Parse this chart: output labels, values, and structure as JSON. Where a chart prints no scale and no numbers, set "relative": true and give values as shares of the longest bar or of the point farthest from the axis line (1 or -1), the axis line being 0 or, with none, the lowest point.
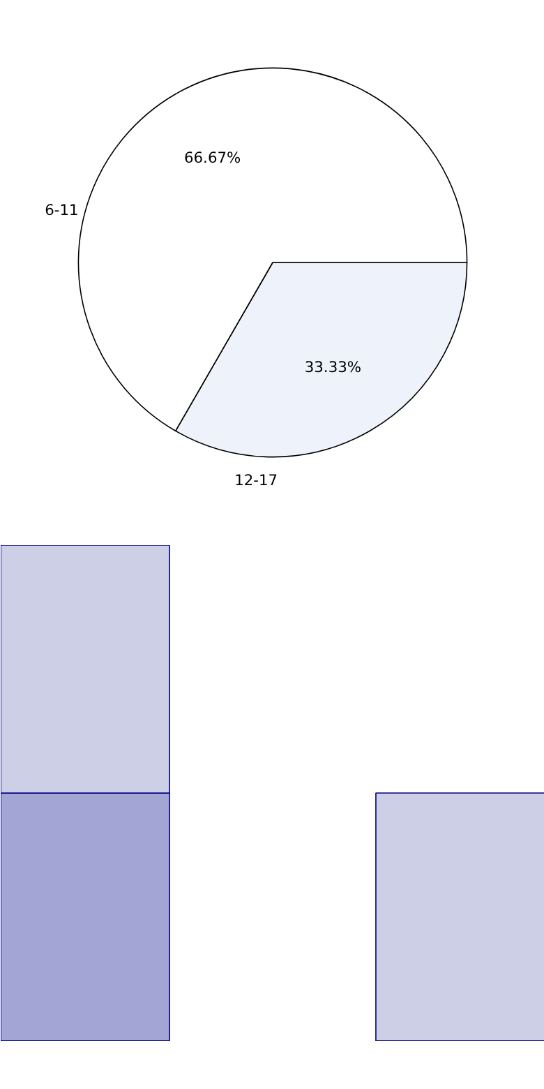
{
  "chart_data": [
    {
      "type": "pie",
      "categories": [
        "6-11",
        "12-17"
      ],
      "values": [
        66.67,
        33.33
      ],
      "colors": [
        "#ffffff",
        "#eef2fb"
      ],
      "value_labels": [
        "66.67%",
        "33.33%"
      ]
    },
    {
      "type": "bar",
      "stacked": true,
      "relative": true,
      "categories": [
        null,
        null
      ],
      "series": [
        {
          "color": "#a3a6d4",
          "values": [
            0.5,
            null
          ]
        },
        {
          "color": "#cdcfe6",
          "values": [
            0.5,
            0.5
          ]
        }
      ]
    }
  ]
}
